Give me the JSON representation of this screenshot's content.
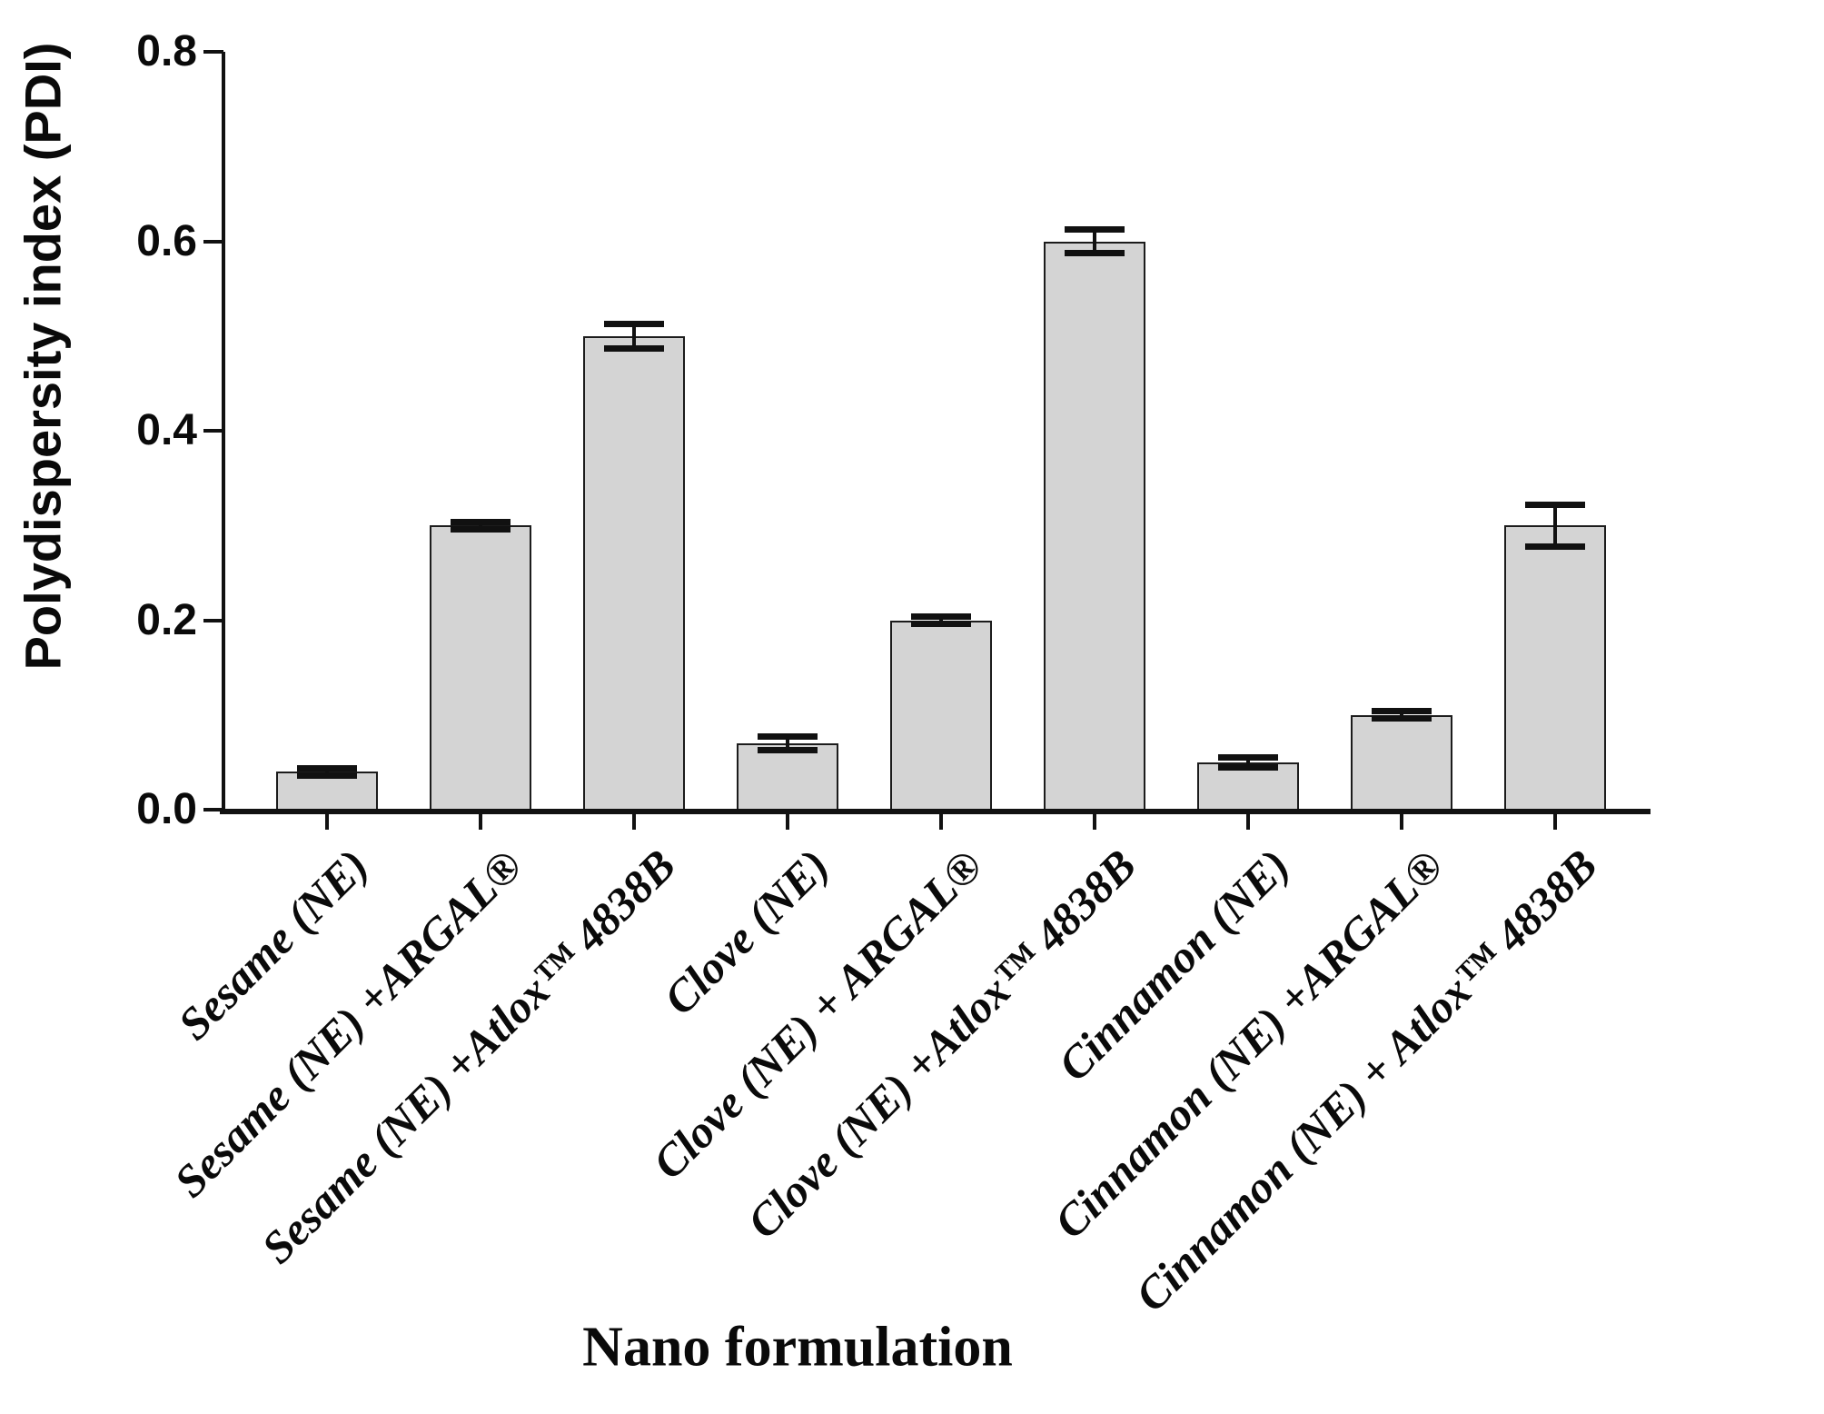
{
  "chart_data": {
    "type": "bar",
    "title": "",
    "xlabel": "Nano formulation",
    "ylabel": "Polydispersity index (PDI)",
    "ylim": [
      0,
      0.8
    ],
    "ytick_labels": [
      "0.0",
      "0.2",
      "0.4",
      "0.6",
      "0.8"
    ],
    "yticks": [
      0.0,
      0.2,
      0.4,
      0.6,
      0.8
    ],
    "grid": false,
    "legend": false,
    "bar_fill": "#d4d4d4",
    "bar_border": "#1c1c1c",
    "error_bar_color": "#111111",
    "categories": [
      "Sesame (NE)",
      "Sesame (NE) +ARGAL®",
      "Sesame (NE) +Atlox™ 4838B",
      "Clove (NE)",
      "Clove (NE) + ARGAL®",
      "Clove (NE) +Atlox™ 4838B",
      "Cinnamon (NE)",
      "Cinnamon (NE) +ARGAL®",
      "Cinnamon (NE) + Atlox™ 4838B"
    ],
    "values": [
      0.04,
      0.3,
      0.5,
      0.07,
      0.2,
      0.6,
      0.05,
      0.1,
      0.3
    ],
    "errors": [
      0.004,
      0.004,
      0.013,
      0.007,
      0.004,
      0.012,
      0.005,
      0.004,
      0.022
    ]
  }
}
